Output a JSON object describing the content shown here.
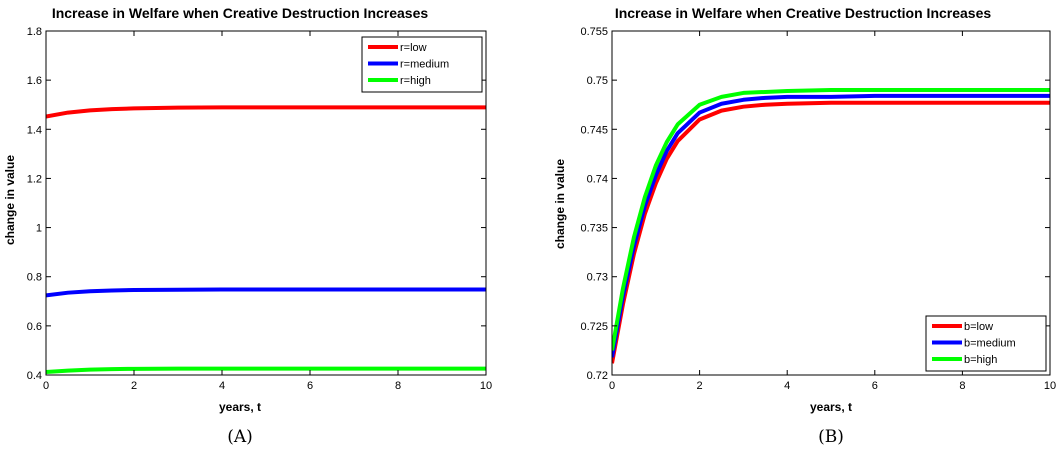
{
  "chart_data": [
    {
      "type": "line",
      "title": "Increase in Welfare when Creative Destruction Increases",
      "xlabel": "years, t",
      "ylabel": "change in value",
      "caption": "(A)",
      "xlim": [
        0,
        10
      ],
      "ylim": [
        0.4,
        1.8
      ],
      "xticks": [
        0,
        2,
        4,
        6,
        8,
        10
      ],
      "yticks": [
        0.4,
        0.6,
        0.8,
        1,
        1.2,
        1.4,
        1.6,
        1.8
      ],
      "legend_position": "top-right",
      "x": [
        0,
        0.5,
        1,
        1.5,
        2,
        3,
        4,
        5,
        6,
        7,
        8,
        9,
        10
      ],
      "series": [
        {
          "name": "r=low",
          "color": "#ff0000",
          "values": [
            1.452,
            1.468,
            1.477,
            1.482,
            1.485,
            1.488,
            1.489,
            1.489,
            1.489,
            1.489,
            1.489,
            1.489,
            1.489
          ]
        },
        {
          "name": "r=medium",
          "color": "#0000ff",
          "values": [
            0.724,
            0.735,
            0.741,
            0.744,
            0.746,
            0.747,
            0.748,
            0.748,
            0.748,
            0.748,
            0.748,
            0.748,
            0.748
          ]
        },
        {
          "name": "r=high",
          "color": "#00ff00",
          "values": [
            0.412,
            0.418,
            0.422,
            0.424,
            0.425,
            0.426,
            0.426,
            0.426,
            0.426,
            0.426,
            0.426,
            0.426,
            0.426
          ]
        }
      ]
    },
    {
      "type": "line",
      "title": "Increase in Welfare when Creative Destruction Increases",
      "xlabel": "years, t",
      "ylabel": "change in value",
      "caption": "(B)",
      "xlim": [
        0,
        10
      ],
      "ylim": [
        0.72,
        0.755
      ],
      "xticks": [
        0,
        2,
        4,
        6,
        8,
        10
      ],
      "yticks": [
        0.72,
        0.725,
        0.73,
        0.735,
        0.74,
        0.745,
        0.75,
        0.755
      ],
      "ytick_labels": [
        "0.72",
        "0.725",
        "0.73",
        "0.735",
        "0.74",
        "0.745",
        "0.75",
        "0.755"
      ],
      "legend_position": "bottom-right",
      "x": [
        0,
        0.25,
        0.5,
        0.75,
        1,
        1.25,
        1.5,
        2,
        2.5,
        3,
        3.5,
        4,
        5,
        6,
        7,
        8,
        9,
        10
      ],
      "series": [
        {
          "name": "b=low",
          "color": "#ff0000",
          "values": [
            0.7212,
            0.7272,
            0.7323,
            0.7364,
            0.7395,
            0.742,
            0.7438,
            0.746,
            0.7469,
            0.7473,
            0.7475,
            0.7476,
            0.7477,
            0.7477,
            0.7477,
            0.7477,
            0.7477,
            0.7477
          ]
        },
        {
          "name": "b=medium",
          "color": "#0000ff",
          "values": [
            0.7218,
            0.728,
            0.7331,
            0.7372,
            0.7403,
            0.7428,
            0.7446,
            0.7467,
            0.7476,
            0.748,
            0.7482,
            0.7483,
            0.7483,
            0.7484,
            0.7484,
            0.7484,
            0.7484,
            0.7484
          ]
        },
        {
          "name": "b=high",
          "color": "#00ff00",
          "values": [
            0.7225,
            0.7288,
            0.734,
            0.7381,
            0.7413,
            0.7437,
            0.7455,
            0.7475,
            0.7483,
            0.7487,
            0.7488,
            0.7489,
            0.749,
            0.749,
            0.749,
            0.749,
            0.749,
            0.749
          ]
        }
      ]
    }
  ]
}
